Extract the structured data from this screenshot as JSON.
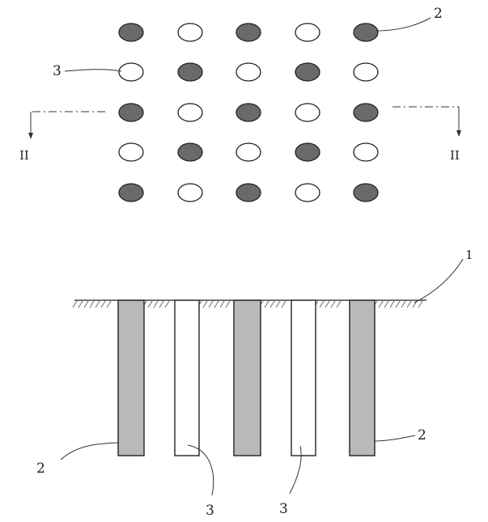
{
  "figure": {
    "section_marker_left": "II",
    "section_marker_right": "II"
  },
  "plan_view": {
    "grid_rows": [
      [
        "stone",
        "plain",
        "stone",
        "plain",
        "stone"
      ],
      [
        "plain",
        "stone",
        "plain",
        "stone",
        "plain"
      ],
      [
        "stone",
        "plain",
        "stone",
        "plain",
        "stone"
      ],
      [
        "plain",
        "stone",
        "plain",
        "stone",
        "plain"
      ],
      [
        "stone",
        "plain",
        "stone",
        "plain",
        "stone"
      ]
    ],
    "label_stone_pile": "2",
    "label_plain_pile": "3"
  },
  "section_view": {
    "columns": [
      "stone",
      "plain",
      "stone",
      "plain",
      "stone"
    ],
    "label_ground": "1",
    "label_stone_left": "2",
    "label_stone_right": "2",
    "label_plain_left": "3",
    "label_plain_right": "3"
  }
}
